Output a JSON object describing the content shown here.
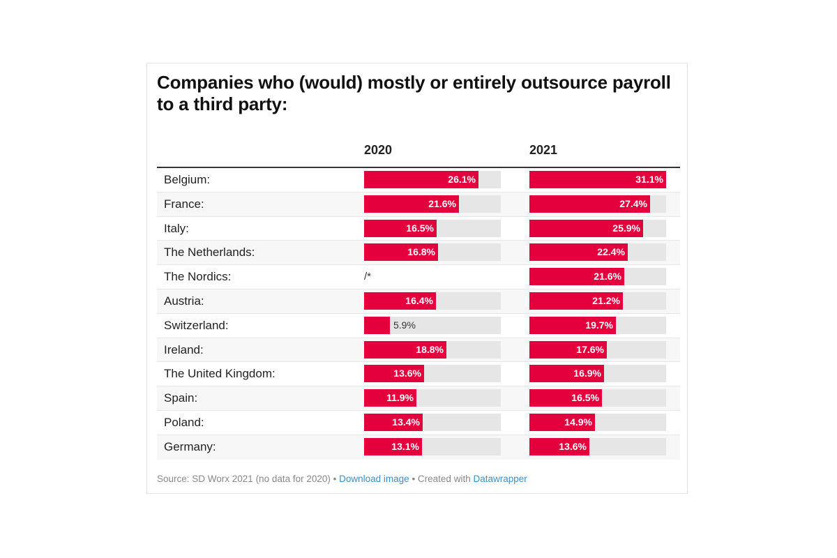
{
  "chart_data": {
    "type": "bar",
    "title": "Companies who (would) mostly or entirely outsource payroll to a third party:",
    "categories": [
      "Belgium:",
      "France:",
      "Italy:",
      "The Netherlands:",
      "The Nordics:",
      "Austria:",
      "Switzerland:",
      "Ireland:",
      "The United Kingdom:",
      "Spain:",
      "Poland:",
      "Germany:"
    ],
    "series": [
      {
        "name": "2020",
        "values": [
          26.1,
          21.6,
          16.5,
          16.8,
          null,
          16.4,
          5.9,
          18.8,
          13.6,
          11.9,
          13.4,
          13.1
        ],
        "labels": [
          "26.1%",
          "21.6%",
          "16.5%",
          "16.8%",
          "/*",
          "16.4%",
          "5.9%",
          "18.8%",
          "13.6%",
          "11.9%",
          "13.4%",
          "13.1%"
        ]
      },
      {
        "name": "2021",
        "values": [
          31.1,
          27.4,
          25.9,
          22.4,
          21.6,
          21.2,
          19.7,
          17.6,
          16.9,
          16.5,
          14.9,
          13.6
        ],
        "labels": [
          "31.1%",
          "27.4%",
          "25.9%",
          "22.4%",
          "21.6%",
          "21.2%",
          "19.7%",
          "17.6%",
          "16.9%",
          "16.5%",
          "14.9%",
          "13.6%"
        ]
      }
    ],
    "xlim": [
      0,
      31.1
    ],
    "bar_color": "#e4003d",
    "track_color": "#e6e6e6"
  },
  "footer": {
    "source": "Source: SD Worx 2021 (no data for 2020)",
    "sep1": " • ",
    "download": "Download image",
    "sep2": " • Created with ",
    "datawrapper": "Datawrapper"
  }
}
